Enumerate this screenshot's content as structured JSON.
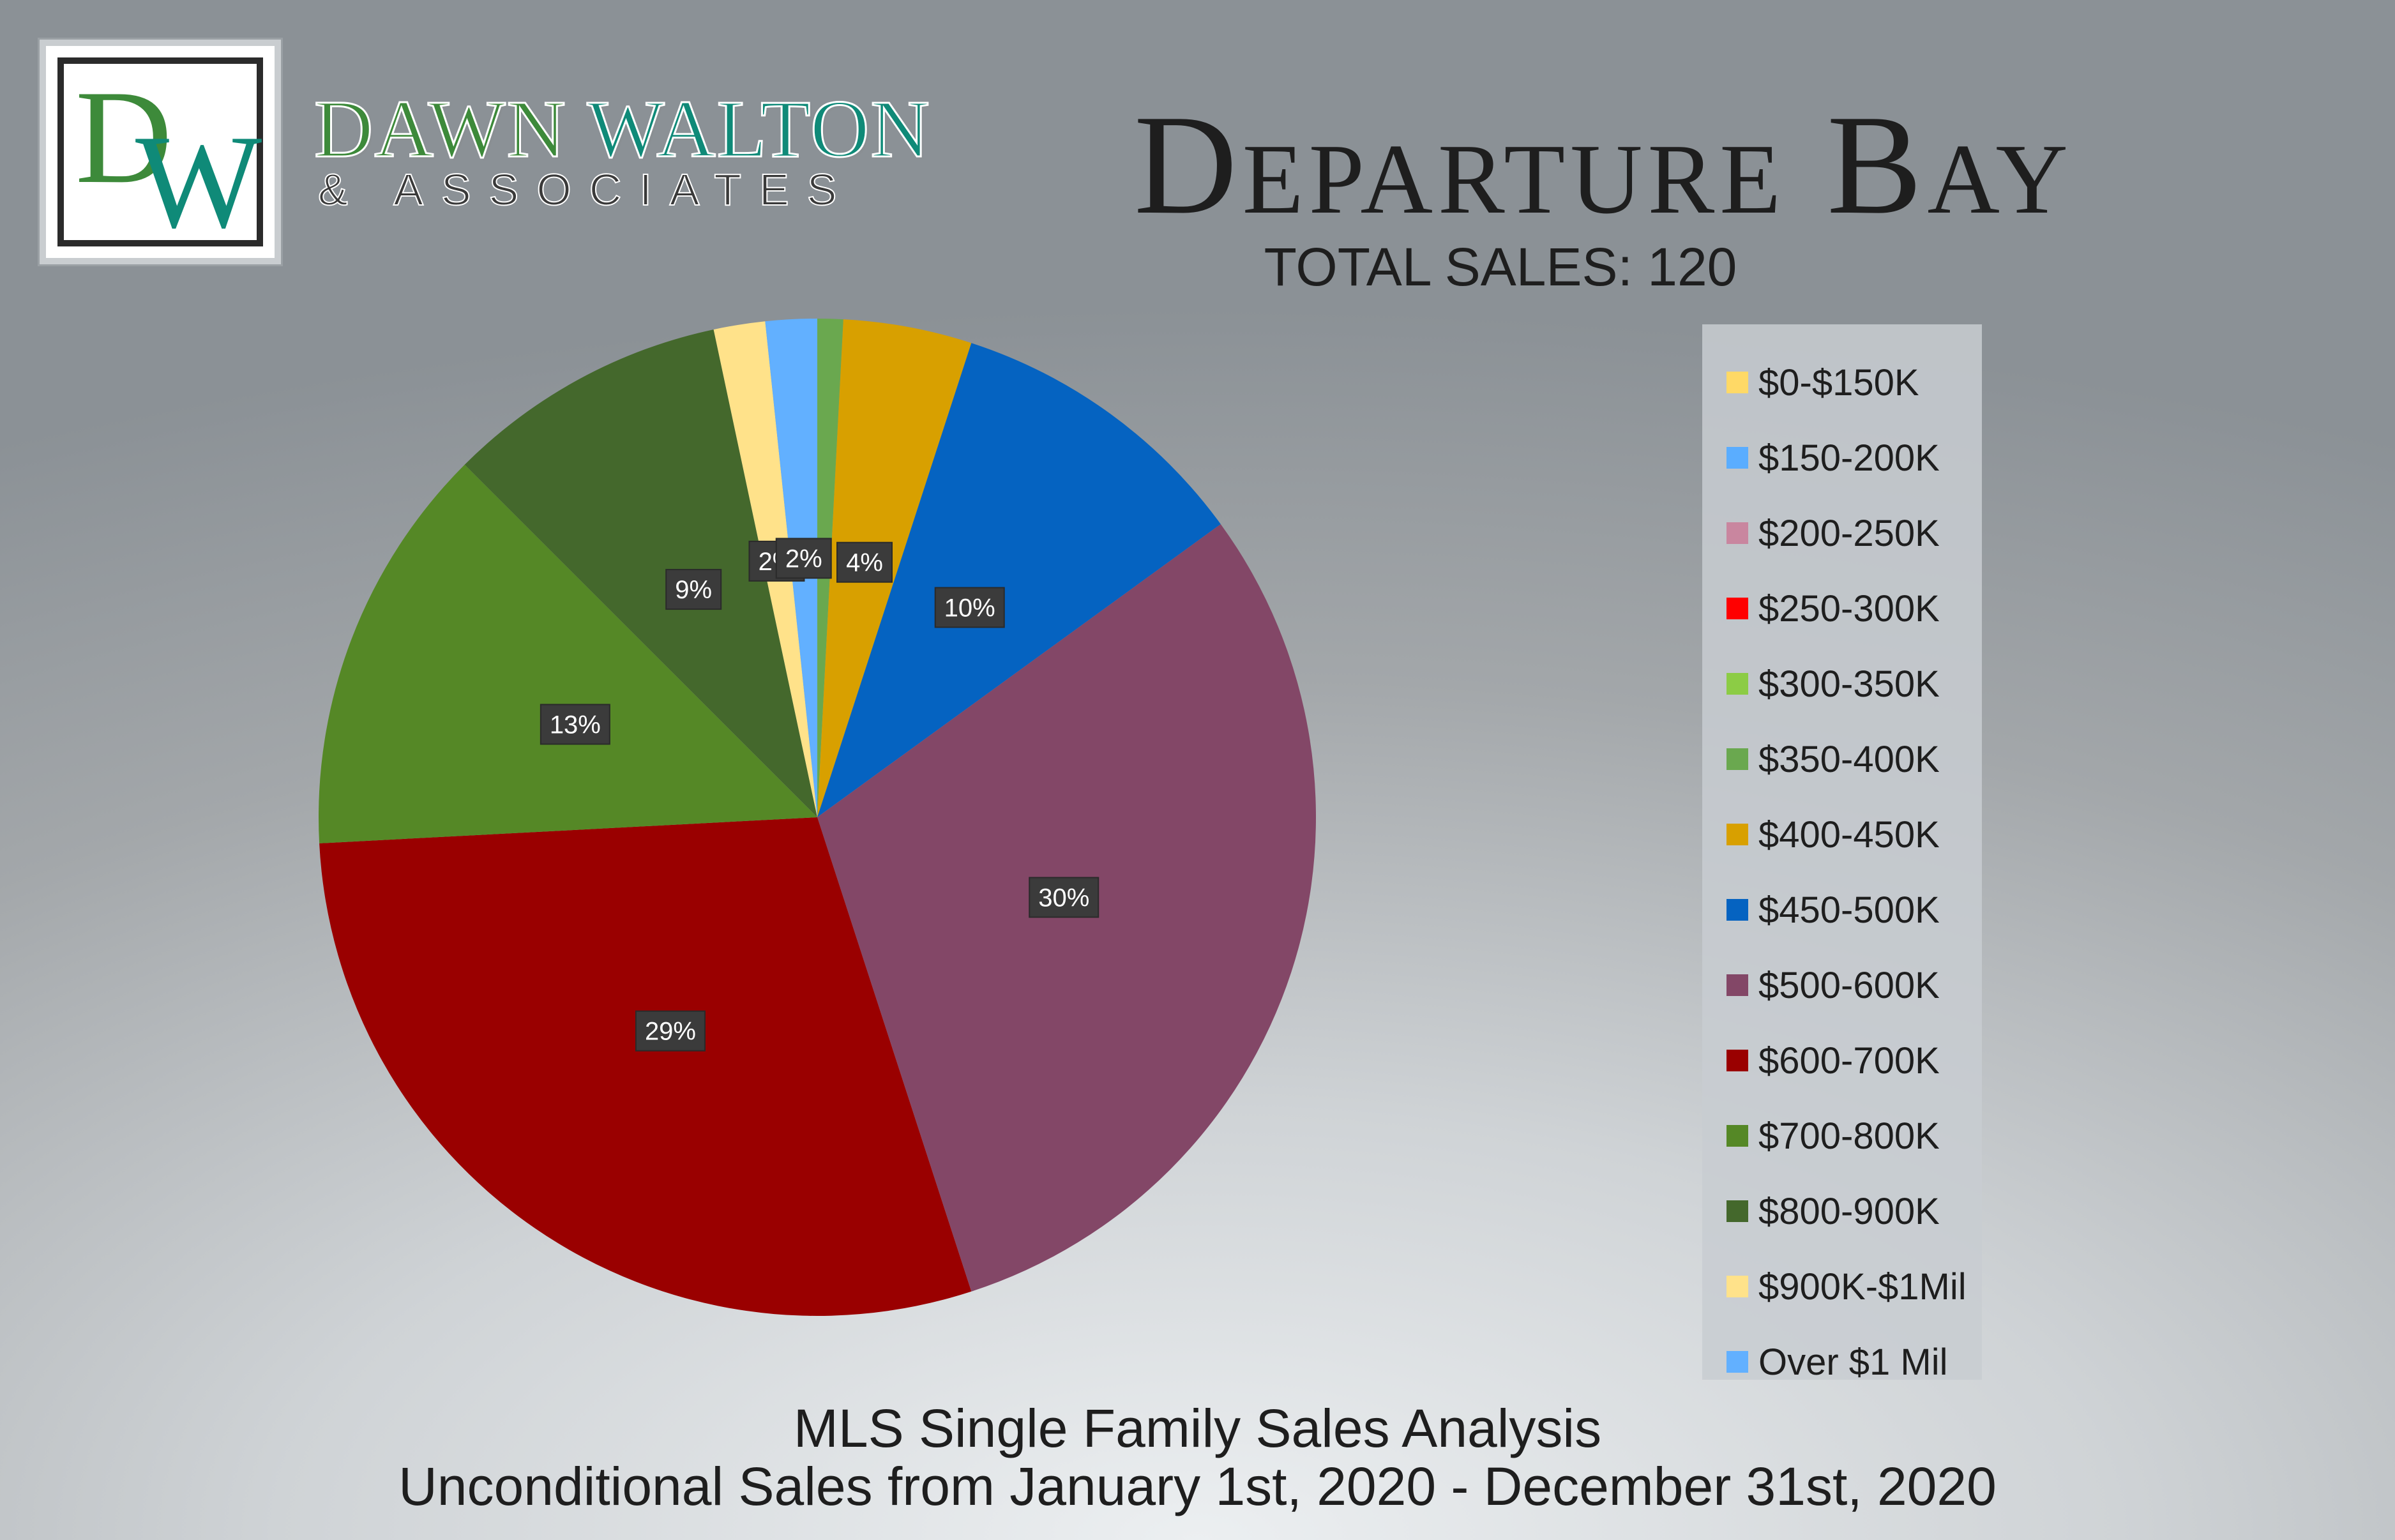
{
  "brand": {
    "logo_letter_1": "D",
    "logo_letter_2": "W",
    "name_part_1": "DAWN",
    "name_part_2": "WALTON",
    "subline": "& ASSOCIATES"
  },
  "header": {
    "title": "Departure Bay",
    "total_sales": "TOTAL SALES: 120"
  },
  "footer": {
    "line_1": "MLS Single Family Sales Analysis",
    "line_2": "Unconditional Sales from January 1st, 2020 - December 31st, 2020"
  },
  "legend": [
    {
      "label": "$0-$150K",
      "color": "#ffd966"
    },
    {
      "label": "$150-200K",
      "color": "#5aadff"
    },
    {
      "label": "$200-250K",
      "color": "#c9869f"
    },
    {
      "label": "$250-300K",
      "color": "#ff0000"
    },
    {
      "label": "$300-350K",
      "color": "#8ccc45"
    },
    {
      "label": "$350-400K",
      "color": "#6aa84f"
    },
    {
      "label": "$400-450K",
      "color": "#d8a000"
    },
    {
      "label": "$450-500K",
      "color": "#0563c1"
    },
    {
      "label": "$500-600K",
      "color": "#834767"
    },
    {
      "label": "$600-700K",
      "color": "#9a0000"
    },
    {
      "label": "$700-800K",
      "color": "#558826"
    },
    {
      "label": "$800-900K",
      "color": "#44682c"
    },
    {
      "label": "$900K-$1Mil",
      "color": "#ffe28a"
    },
    {
      "label": "Over $1 Mil",
      "color": "#62b0ff"
    }
  ],
  "chart_data": {
    "type": "pie",
    "title": "",
    "total_sales": 120,
    "slices": [
      {
        "category": "$350-400K",
        "value": 1,
        "percent_label": "",
        "color": "#6aa84f"
      },
      {
        "category": "$400-450K",
        "value": 5,
        "percent_label": "4%",
        "color": "#d8a000"
      },
      {
        "category": "$450-500K",
        "value": 12,
        "percent_label": "10%",
        "color": "#0563c1"
      },
      {
        "category": "$500-600K",
        "value": 36,
        "percent_label": "30%",
        "color": "#834767"
      },
      {
        "category": "$600-700K",
        "value": 35,
        "percent_label": "29%",
        "color": "#9a0000"
      },
      {
        "category": "$700-800K",
        "value": 16,
        "percent_label": "13%",
        "color": "#558826"
      },
      {
        "category": "$800-900K",
        "value": 11,
        "percent_label": "9%",
        "color": "#44682c"
      },
      {
        "category": "$900K-$1Mil",
        "value": 2,
        "percent_label": "2%",
        "color": "#ffe28a"
      },
      {
        "category": "Over $1 Mil",
        "value": 2,
        "percent_label": "2%",
        "color": "#62b0ff"
      }
    ],
    "legend_position": "right"
  }
}
